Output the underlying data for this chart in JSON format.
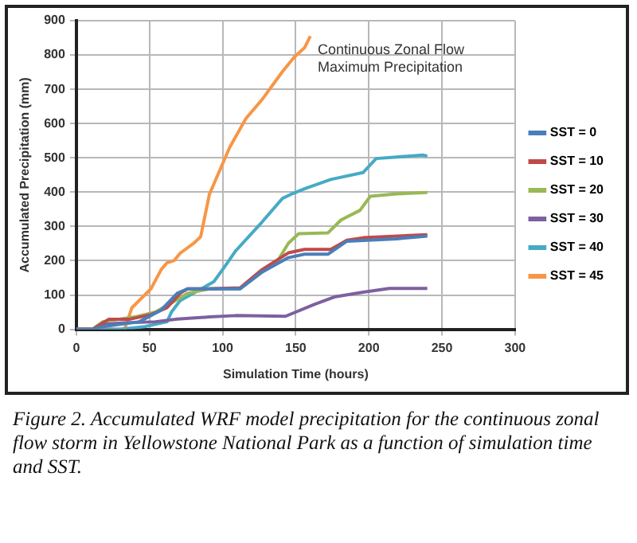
{
  "chart_data": {
    "type": "line",
    "xlabel": "Simulation Time (hours)",
    "ylabel": "Accumulated Precipitation (mm)",
    "xlim": [
      0,
      300
    ],
    "xticks": [
      0,
      50,
      100,
      150,
      200,
      250,
      300
    ],
    "ylim": [
      0,
      900
    ],
    "yticks": [
      0,
      100,
      200,
      300,
      400,
      500,
      600,
      700,
      800,
      900
    ],
    "grid": true,
    "legend": "right",
    "marker": "none",
    "line_style": "solid",
    "annotations": [
      "Continuous Zonal Flow\nMaximum Precipitation",
      "Figure 2. Accumulated WRF model precipitation for the continuous zonal flow storm in Yellowstone National Park as a function of simulation time and SST."
    ],
    "series": [
      {
        "name": "SST = 0",
        "color": "#4a7ebb",
        "x": [
          0,
          11,
          18,
          43,
          58,
          69,
          76,
          112,
          127,
          145,
          156,
          172,
          185,
          219,
          240
        ],
        "values": [
          0,
          0,
          8,
          22,
          56,
          105,
          118,
          118,
          167,
          209,
          219,
          219,
          257,
          264,
          272
        ]
      },
      {
        "name": "SST = 10",
        "color": "#be4b48",
        "x": [
          0,
          11,
          22,
          36,
          51,
          62,
          71,
          76,
          91,
          112,
          127,
          145,
          156,
          174,
          185,
          196,
          240
        ],
        "values": [
          0,
          0,
          29,
          29,
          43,
          63,
          105,
          118,
          118,
          121,
          174,
          223,
          233,
          233,
          260,
          267,
          276
        ]
      },
      {
        "name": "SST = 20",
        "color": "#98b954",
        "x": [
          0,
          11,
          18,
          40,
          54,
          65,
          76,
          91,
          112,
          127,
          138,
          145,
          152,
          172,
          181,
          194,
          201,
          219,
          240
        ],
        "values": [
          0,
          0,
          22,
          36,
          50,
          77,
          105,
          118,
          118,
          167,
          202,
          251,
          279,
          281,
          319,
          347,
          388,
          395,
          399
        ]
      },
      {
        "name": "SST = 30",
        "color": "#7d60a0",
        "x": [
          0,
          11,
          18,
          33,
          54,
          69,
          91,
          109,
          143,
          163,
          177,
          196,
          214,
          240
        ],
        "values": [
          0,
          0,
          15,
          19,
          22,
          30,
          36,
          40,
          38,
          73,
          95,
          108,
          119,
          119
        ]
      },
      {
        "name": "SST = 40",
        "color": "#46aac5",
        "x": [
          0,
          30,
          47,
          62,
          65,
          71,
          83,
          94,
          101,
          109,
          127,
          141,
          148,
          156,
          174,
          196,
          205,
          237,
          240
        ],
        "values": [
          0,
          0,
          8,
          22,
          50,
          84,
          112,
          139,
          180,
          229,
          313,
          382,
          396,
          410,
          437,
          457,
          498,
          508,
          505
        ]
      },
      {
        "name": "SST = 45",
        "color": "#f79646",
        "x": [
          0,
          33,
          38,
          51,
          58,
          62,
          67,
          71,
          80,
          85,
          91,
          98,
          105,
          116,
          127,
          141,
          149,
          156,
          160
        ],
        "values": [
          0,
          0,
          63,
          118,
          174,
          194,
          201,
          222,
          250,
          270,
          394,
          463,
          532,
          615,
          670,
          752,
          794,
          821,
          855
        ]
      }
    ]
  }
}
